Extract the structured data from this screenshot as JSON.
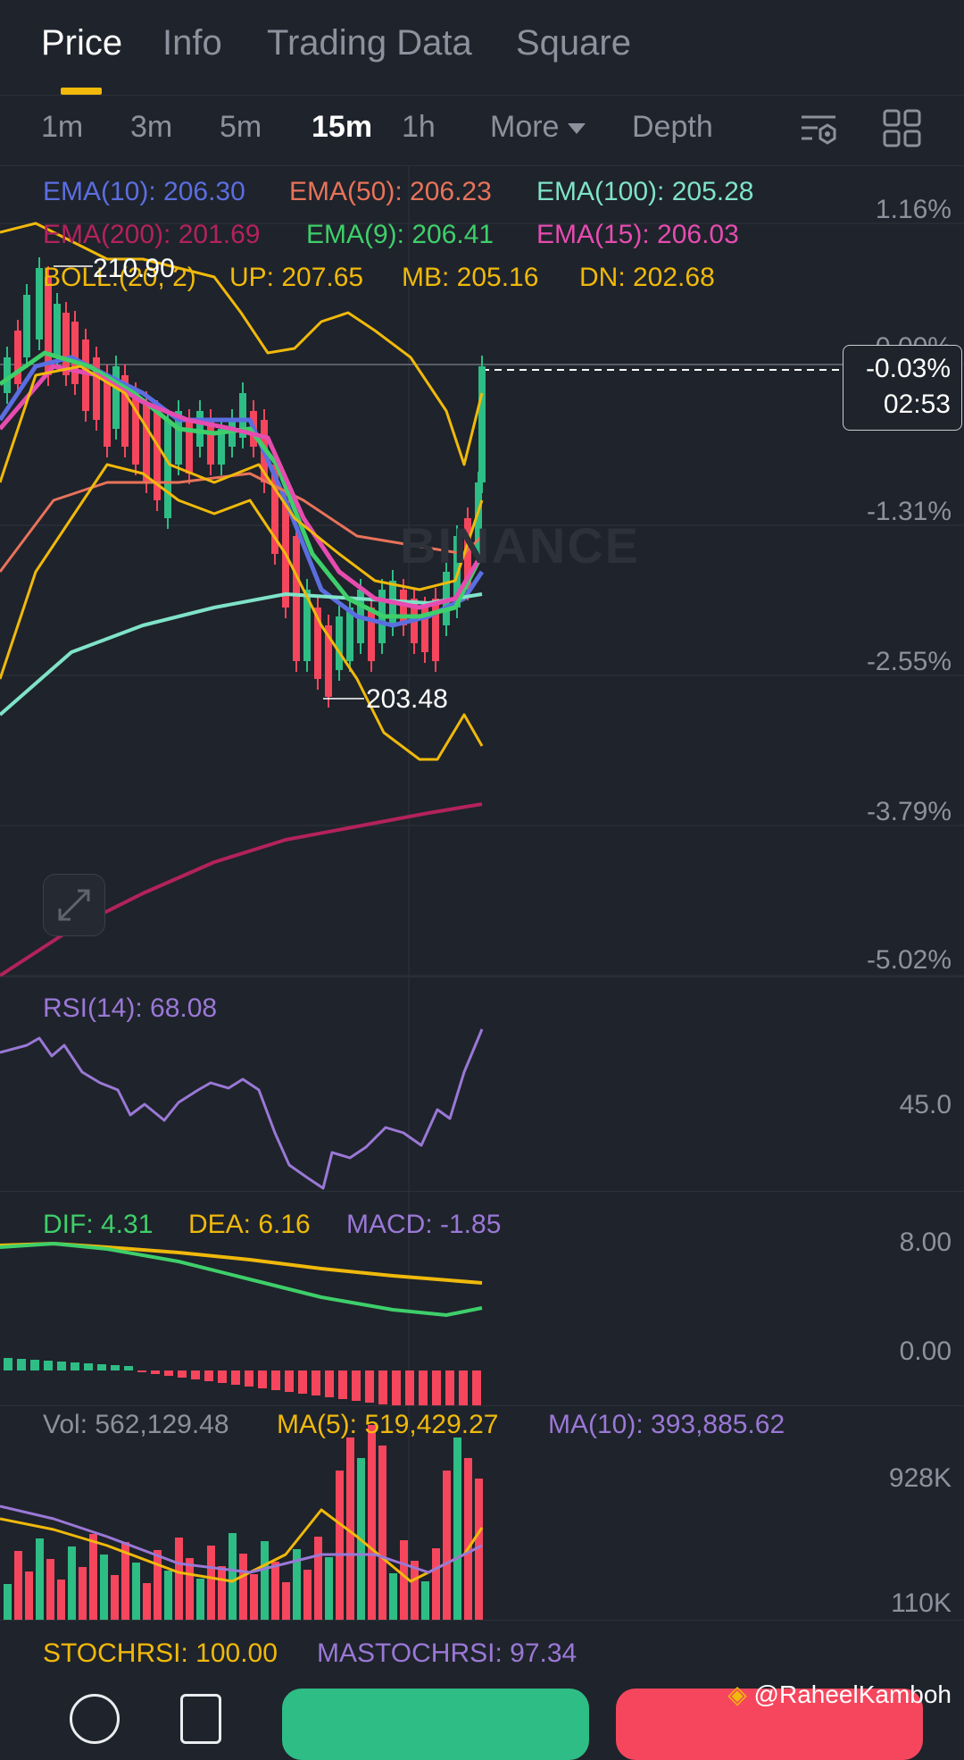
{
  "tabs": [
    {
      "label": "Price"
    },
    {
      "label": "Info"
    },
    {
      "label": "Trading Data"
    },
    {
      "label": "Square"
    }
  ],
  "intervals": {
    "items": [
      {
        "label": "1m"
      },
      {
        "label": "3m"
      },
      {
        "label": "5m"
      },
      {
        "label": "15m"
      },
      {
        "label": "1h"
      }
    ],
    "more_label": "More",
    "depth_label": "Depth",
    "active": "15m"
  },
  "ema": {
    "ema10": "EMA(10): 206.30",
    "ema50": "EMA(50): 206.23",
    "ema100": "EMA(100): 205.28",
    "ema200": "EMA(200): 201.69",
    "ema9": "EMA(9): 206.41",
    "ema15": "EMA(15): 206.03"
  },
  "boll": {
    "label": "BOLL:(20, 2)",
    "up": "UP: 207.65",
    "mb": "MB: 205.16",
    "dn": "DN: 202.68"
  },
  "chart_labels": {
    "high": "210.90",
    "low": "203.48",
    "watermark": "BINANCE"
  },
  "price_axis": {
    "ticks": [
      "1.16%",
      "0.00%",
      "-1.31%",
      "-2.55%",
      "-3.79%",
      "-5.02%"
    ],
    "current_change": "-0.03%",
    "countdown": "02:53"
  },
  "rsi": {
    "label": "RSI(14): 68.08",
    "axis": "45.0"
  },
  "macd": {
    "dif": "DIF: 4.31",
    "dea": "DEA: 6.16",
    "macd": "MACD: -1.85",
    "axis_top": "8.00",
    "axis_zero": "0.00"
  },
  "volume": {
    "vol": "Vol: 562,129.48",
    "ma5": "MA(5): 519,429.27",
    "ma10": "MA(10): 393,885.62",
    "axis_top": "928K",
    "axis_bottom": "110K"
  },
  "stochrsi": {
    "stoch": "STOCHRSI: 100.00",
    "mastoch": "MASTOCHRSI: 97.34"
  },
  "credit": "@RaheelKamboh",
  "icons": {
    "indicator_settings": "indicator-settings-icon",
    "grid_layout": "grid-layout-icon",
    "expand": "expand-icon",
    "more_menu": "more-menu-icon",
    "orders": "orders-icon"
  },
  "colors": {
    "bg": "#1f232b",
    "accent": "#f0b90b",
    "up": "#2ebd85",
    "down": "#f6465d",
    "ema10": "#5b6ee1",
    "ema50": "#e8735a",
    "ema100": "#7fe3c9",
    "ema200": "#b3225c",
    "ema9": "#3ecf6a",
    "ema15": "#e64cb0",
    "boll": "#f0b90b",
    "rsi": "#9a78d6"
  }
}
